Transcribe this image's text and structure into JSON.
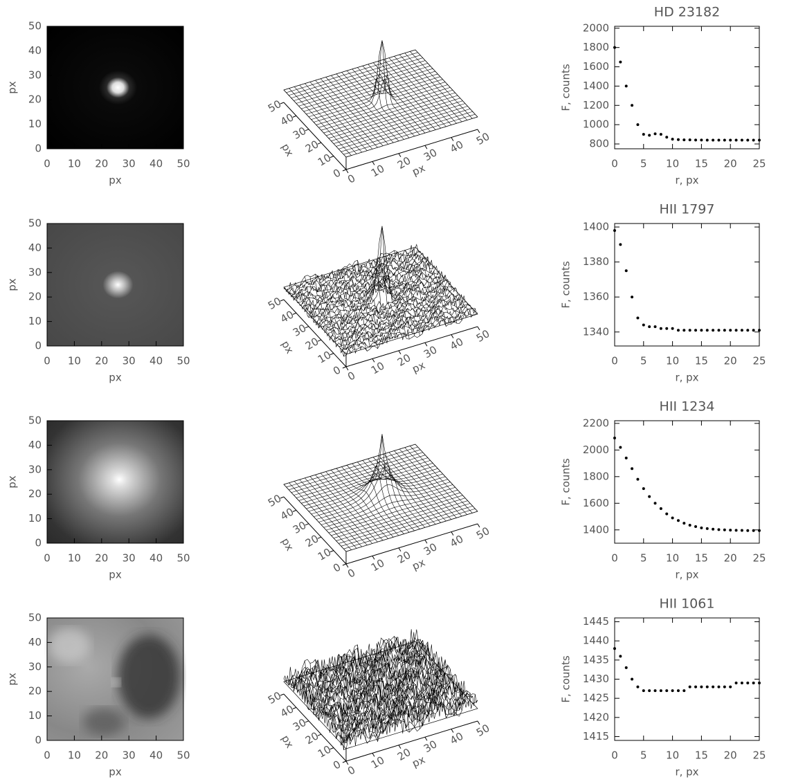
{
  "chart_data": [
    {
      "type": "image",
      "xlim": [
        0,
        50
      ],
      "xticks": [
        0,
        10,
        20,
        30,
        40,
        50
      ],
      "ylim": [
        0,
        50
      ],
      "yticks": [
        0,
        10,
        20,
        30,
        40,
        50
      ],
      "xlabel": "px",
      "ylabel": "px"
    },
    {
      "type": "surface",
      "xlim": [
        0,
        50
      ],
      "xticks": [
        0,
        10,
        20,
        30,
        40,
        50
      ],
      "ylim": [
        0,
        50
      ],
      "yticks": [
        0,
        10,
        20,
        30,
        40,
        50
      ],
      "xlabel": "px",
      "ylabel": "px"
    },
    {
      "type": "scatter",
      "title": "HD 23182",
      "xlabel": "r, px",
      "ylabel": "F, counts",
      "xlim": [
        0,
        25
      ],
      "xticks": [
        0,
        5,
        10,
        15,
        20,
        25
      ],
      "ylim": [
        750,
        2020
      ],
      "yticks": [
        800,
        1000,
        1200,
        1400,
        1600,
        1800,
        2000
      ],
      "x": [
        0,
        1,
        2,
        3,
        4,
        5,
        6,
        7,
        8,
        9,
        10,
        11,
        12,
        13,
        14,
        15,
        16,
        17,
        18,
        19,
        20,
        21,
        22,
        23,
        24,
        25
      ],
      "values": [
        1800,
        1650,
        1400,
        1200,
        1000,
        900,
        890,
        905,
        900,
        870,
        850,
        845,
        842,
        842,
        841,
        841,
        840,
        840,
        840,
        840,
        840,
        840,
        840,
        840,
        840,
        840
      ]
    },
    {
      "type": "image",
      "xlim": [
        0,
        50
      ],
      "xticks": [
        0,
        10,
        20,
        30,
        40,
        50
      ],
      "ylim": [
        0,
        50
      ],
      "yticks": [
        0,
        10,
        20,
        30,
        40,
        50
      ],
      "xlabel": "px",
      "ylabel": "px"
    },
    {
      "type": "surface",
      "xlim": [
        0,
        50
      ],
      "xticks": [
        0,
        10,
        20,
        30,
        40,
        50
      ],
      "ylim": [
        0,
        50
      ],
      "yticks": [
        0,
        10,
        20,
        30,
        40,
        50
      ],
      "xlabel": "px",
      "ylabel": "px"
    },
    {
      "type": "scatter",
      "title": "HII 1797",
      "xlabel": "r, px",
      "ylabel": "F, counts",
      "xlim": [
        0,
        25
      ],
      "xticks": [
        0,
        5,
        10,
        15,
        20,
        25
      ],
      "ylim": [
        1332,
        1402
      ],
      "yticks": [
        1340,
        1360,
        1380,
        1400
      ],
      "x": [
        0,
        1,
        2,
        3,
        4,
        5,
        6,
        7,
        8,
        9,
        10,
        11,
        12,
        13,
        14,
        15,
        16,
        17,
        18,
        19,
        20,
        21,
        22,
        23,
        24,
        25
      ],
      "values": [
        1398,
        1390,
        1375,
        1360,
        1348,
        1344,
        1343,
        1343,
        1342,
        1342,
        1342,
        1341,
        1341,
        1341,
        1341,
        1341,
        1341,
        1341,
        1341,
        1341,
        1341,
        1341,
        1341,
        1341,
        1341,
        1341
      ]
    },
    {
      "type": "image",
      "xlim": [
        0,
        50
      ],
      "xticks": [
        0,
        10,
        20,
        30,
        40,
        50
      ],
      "ylim": [
        0,
        50
      ],
      "yticks": [
        0,
        10,
        20,
        30,
        40,
        50
      ],
      "xlabel": "px",
      "ylabel": "px"
    },
    {
      "type": "surface",
      "xlim": [
        0,
        50
      ],
      "xticks": [
        0,
        10,
        20,
        30,
        40,
        50
      ],
      "ylim": [
        0,
        50
      ],
      "yticks": [
        0,
        10,
        20,
        30,
        40,
        50
      ],
      "xlabel": "px",
      "ylabel": "px"
    },
    {
      "type": "scatter",
      "title": "HII 1234",
      "xlabel": "r, px",
      "ylabel": "F, counts",
      "xlim": [
        0,
        25
      ],
      "xticks": [
        0,
        5,
        10,
        15,
        20,
        25
      ],
      "ylim": [
        1300,
        2220
      ],
      "yticks": [
        1400,
        1600,
        1800,
        2000,
        2200
      ],
      "x": [
        0,
        1,
        2,
        3,
        4,
        5,
        6,
        7,
        8,
        9,
        10,
        11,
        12,
        13,
        14,
        15,
        16,
        17,
        18,
        19,
        20,
        21,
        22,
        23,
        24,
        25
      ],
      "values": [
        2090,
        2020,
        1940,
        1860,
        1780,
        1710,
        1650,
        1600,
        1560,
        1520,
        1490,
        1470,
        1450,
        1435,
        1425,
        1415,
        1410,
        1405,
        1402,
        1400,
        1398,
        1397,
        1396,
        1395,
        1395,
        1395
      ]
    },
    {
      "type": "image",
      "xlim": [
        0,
        50
      ],
      "xticks": [
        0,
        10,
        20,
        30,
        40,
        50
      ],
      "ylim": [
        0,
        50
      ],
      "yticks": [
        0,
        10,
        20,
        30,
        40,
        50
      ],
      "xlabel": "px",
      "ylabel": "px"
    },
    {
      "type": "surface",
      "xlim": [
        0,
        50
      ],
      "xticks": [
        0,
        10,
        20,
        30,
        40,
        50
      ],
      "ylim": [
        0,
        50
      ],
      "yticks": [
        0,
        10,
        20,
        30,
        40,
        50
      ],
      "xlabel": "px",
      "ylabel": "px"
    },
    {
      "type": "scatter",
      "title": "HII 1061",
      "xlabel": "r, px",
      "ylabel": "F, counts",
      "xlim": [
        0,
        25
      ],
      "xticks": [
        0,
        5,
        10,
        15,
        20,
        25
      ],
      "ylim": [
        1414,
        1446
      ],
      "yticks": [
        1415,
        1420,
        1425,
        1430,
        1435,
        1440,
        1445
      ],
      "x": [
        0,
        1,
        2,
        3,
        4,
        5,
        6,
        7,
        8,
        9,
        10,
        11,
        12,
        13,
        14,
        15,
        16,
        17,
        18,
        19,
        20,
        21,
        22,
        23,
        24,
        25
      ],
      "values": [
        1438,
        1436,
        1433,
        1430,
        1428,
        1427,
        1427,
        1427,
        1427,
        1427,
        1427,
        1427,
        1427,
        1428,
        1428,
        1428,
        1428,
        1428,
        1428,
        1428,
        1428,
        1429,
        1429,
        1429,
        1429,
        1429
      ]
    }
  ]
}
